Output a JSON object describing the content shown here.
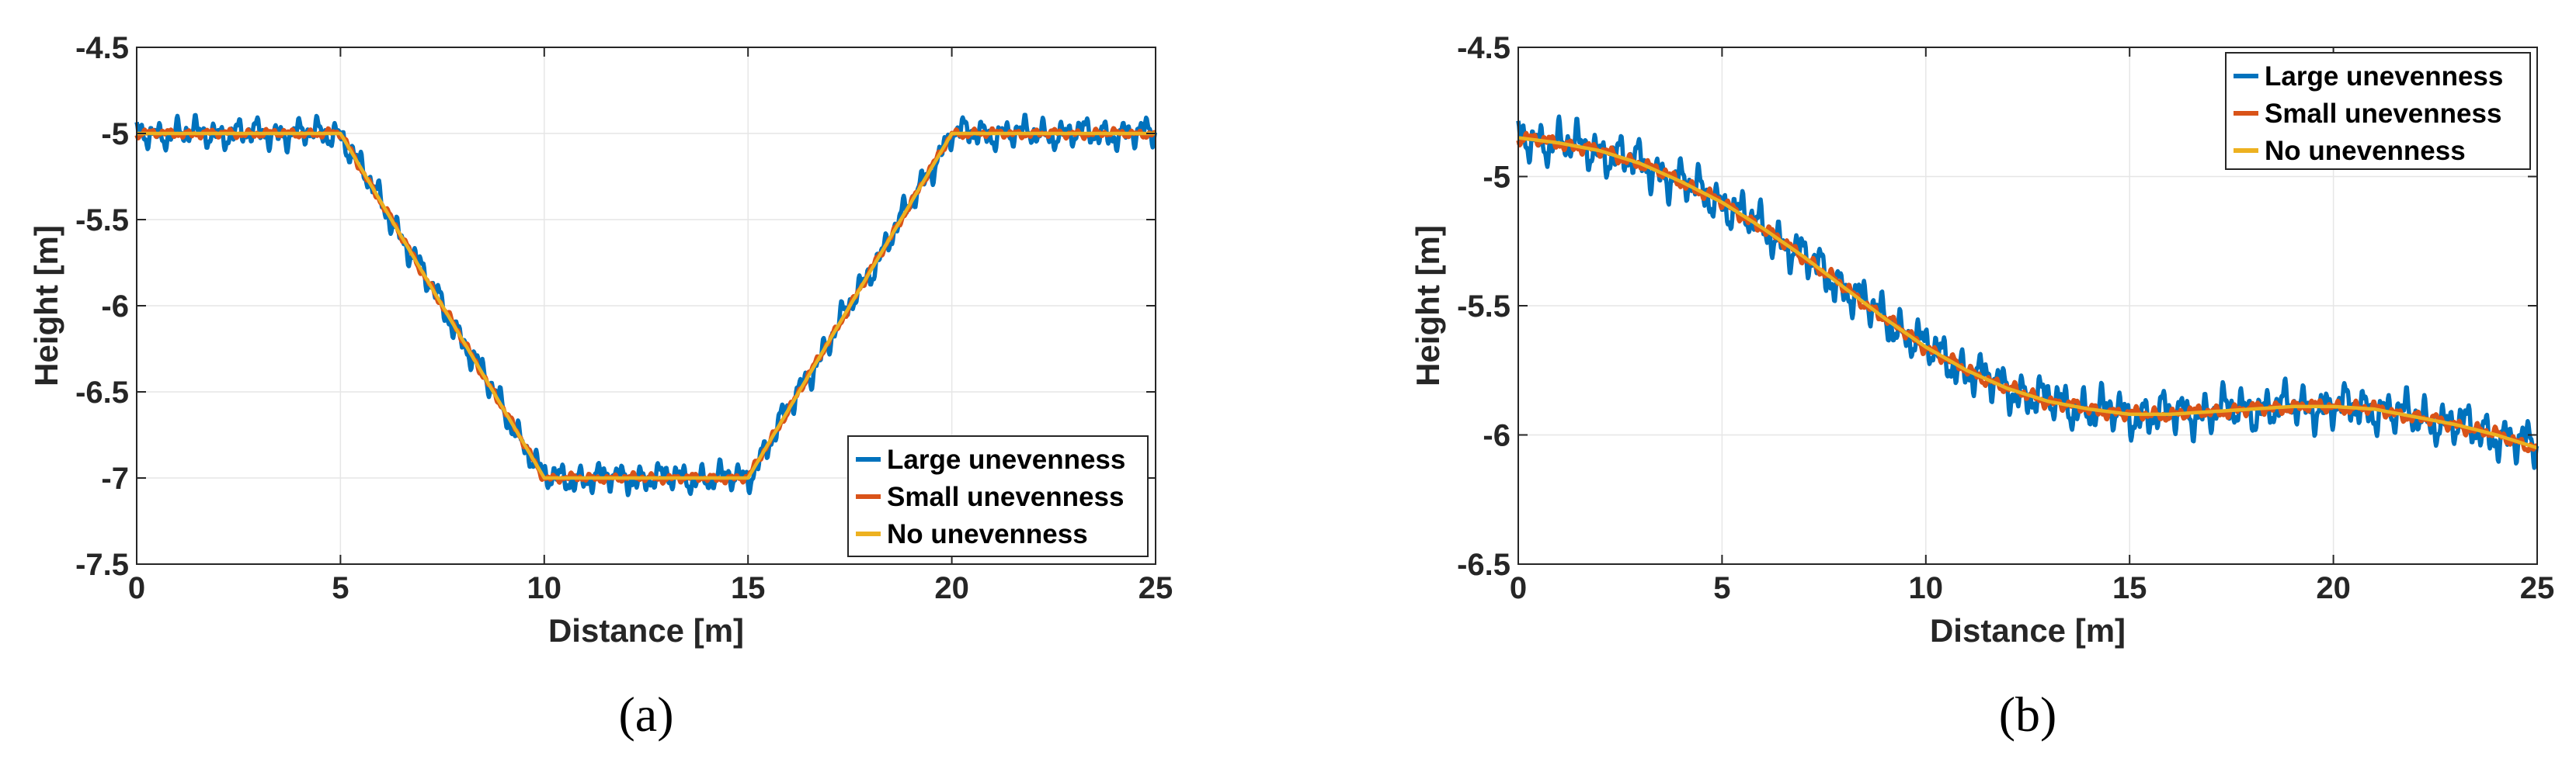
{
  "colors": {
    "large": "#0072BD",
    "small": "#D95319",
    "none": "#EDB120",
    "grid": "#E6E6E6",
    "axis": "#262626"
  },
  "legend_labels": [
    "Large unevenness",
    "Small unevenness",
    "No unevenness"
  ],
  "chart_data": [
    {
      "type": "line",
      "panel": "(a)",
      "xlabel": "Distance [m]",
      "ylabel": "Height [m]",
      "xlim": [
        0,
        25
      ],
      "ylim": [
        -7.5,
        -4.5
      ],
      "xticks": [
        0,
        5,
        10,
        15,
        20,
        25
      ],
      "yticks": [
        -7.5,
        -7,
        -6.5,
        -6,
        -5.5,
        -5,
        -4.5
      ],
      "xtick_labels": [
        "0",
        "5",
        "10",
        "15",
        "20",
        "25"
      ],
      "ytick_labels": [
        "-7.5",
        "-7",
        "-6.5",
        "-6",
        "-5.5",
        "-5",
        "-4.5"
      ],
      "grid": true,
      "legend_location": "bottom-right",
      "base_profile": {
        "x": [
          0,
          5,
          10,
          15,
          20,
          25
        ],
        "y": [
          -5,
          -5,
          -7,
          -7,
          -5,
          -5
        ]
      },
      "series": [
        {
          "name": "Large unevenness",
          "noise_amplitude": 0.1
        },
        {
          "name": "Small unevenness",
          "noise_amplitude": 0.03
        },
        {
          "name": "No unevenness",
          "noise_amplitude": 0
        }
      ]
    },
    {
      "type": "line",
      "panel": "(b)",
      "xlabel": "Distance [m]",
      "ylabel": "Height [m]",
      "xlim": [
        0,
        25
      ],
      "ylim": [
        -6.5,
        -4.5
      ],
      "xticks": [
        0,
        5,
        10,
        15,
        20,
        25
      ],
      "yticks": [
        -6.5,
        -6,
        -5.5,
        -5,
        -4.5
      ],
      "xtick_labels": [
        "0",
        "5",
        "10",
        "15",
        "20",
        "25"
      ],
      "ytick_labels": [
        "-6.5",
        "-6",
        "-5.5",
        "-5",
        "-4.5"
      ],
      "grid": true,
      "legend_location": "top-right",
      "base_profile": {
        "x": [
          0,
          1,
          2,
          3,
          4,
          5,
          6,
          7,
          8,
          9,
          10,
          11,
          12,
          13,
          14,
          15,
          16,
          17,
          18,
          19,
          20,
          21,
          22,
          23,
          24,
          25
        ],
        "y": [
          -4.85,
          -4.87,
          -4.9,
          -4.95,
          -5.02,
          -5.1,
          -5.2,
          -5.31,
          -5.43,
          -5.55,
          -5.66,
          -5.75,
          -5.82,
          -5.87,
          -5.9,
          -5.92,
          -5.92,
          -5.91,
          -5.9,
          -5.89,
          -5.89,
          -5.9,
          -5.93,
          -5.96,
          -6.0,
          -6.05
        ]
      },
      "series": [
        {
          "name": "Large unevenness",
          "noise_amplitude": 0.1
        },
        {
          "name": "Small unevenness",
          "noise_amplitude": 0.03
        },
        {
          "name": "No unevenness",
          "noise_amplitude": 0
        }
      ]
    }
  ]
}
